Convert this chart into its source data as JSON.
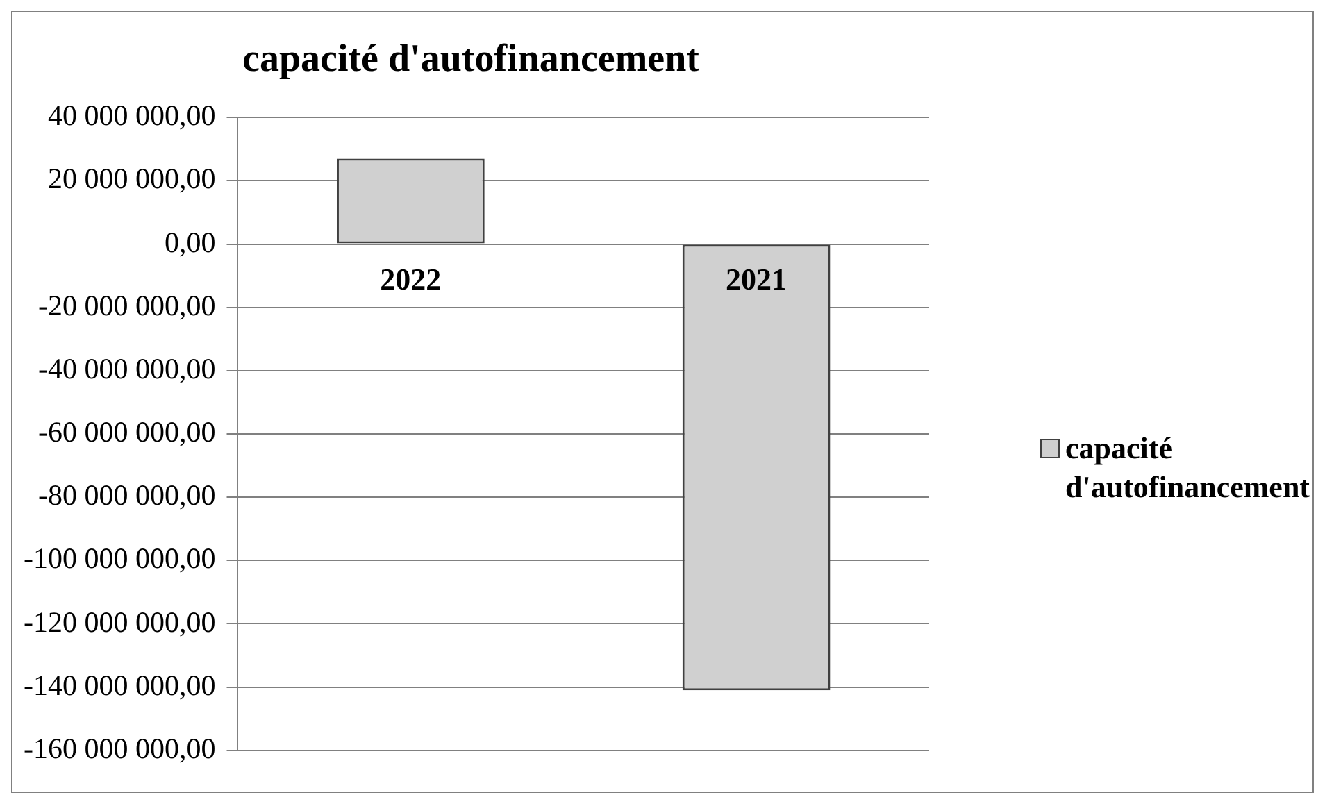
{
  "chart_data": {
    "type": "bar",
    "title": "capacité d'autofinancement",
    "categories": [
      "2022",
      "2021"
    ],
    "series": [
      {
        "name": "capacité d'autofinancement",
        "color": "#d0d0d0",
        "values": [
          27000000,
          -141000000
        ]
      }
    ],
    "ylim": [
      -160000000,
      40000000
    ],
    "yticks": [
      {
        "value": 40000000,
        "label": "40 000 000,00"
      },
      {
        "value": 20000000,
        "label": "20 000 000,00"
      },
      {
        "value": 0,
        "label": "0,00"
      },
      {
        "value": -20000000,
        "label": "-20 000 000,00"
      },
      {
        "value": -40000000,
        "label": "-40 000 000,00"
      },
      {
        "value": -60000000,
        "label": "-60 000 000,00"
      },
      {
        "value": -80000000,
        "label": "-80 000 000,00"
      },
      {
        "value": -100000000,
        "label": "-100 000 000,00"
      },
      {
        "value": -120000000,
        "label": "-120 000 000,00"
      },
      {
        "value": -140000000,
        "label": "-140 000 000,00"
      },
      {
        "value": -160000000,
        "label": "-160 000 000,00"
      }
    ],
    "grid": "y",
    "legend": "right"
  }
}
